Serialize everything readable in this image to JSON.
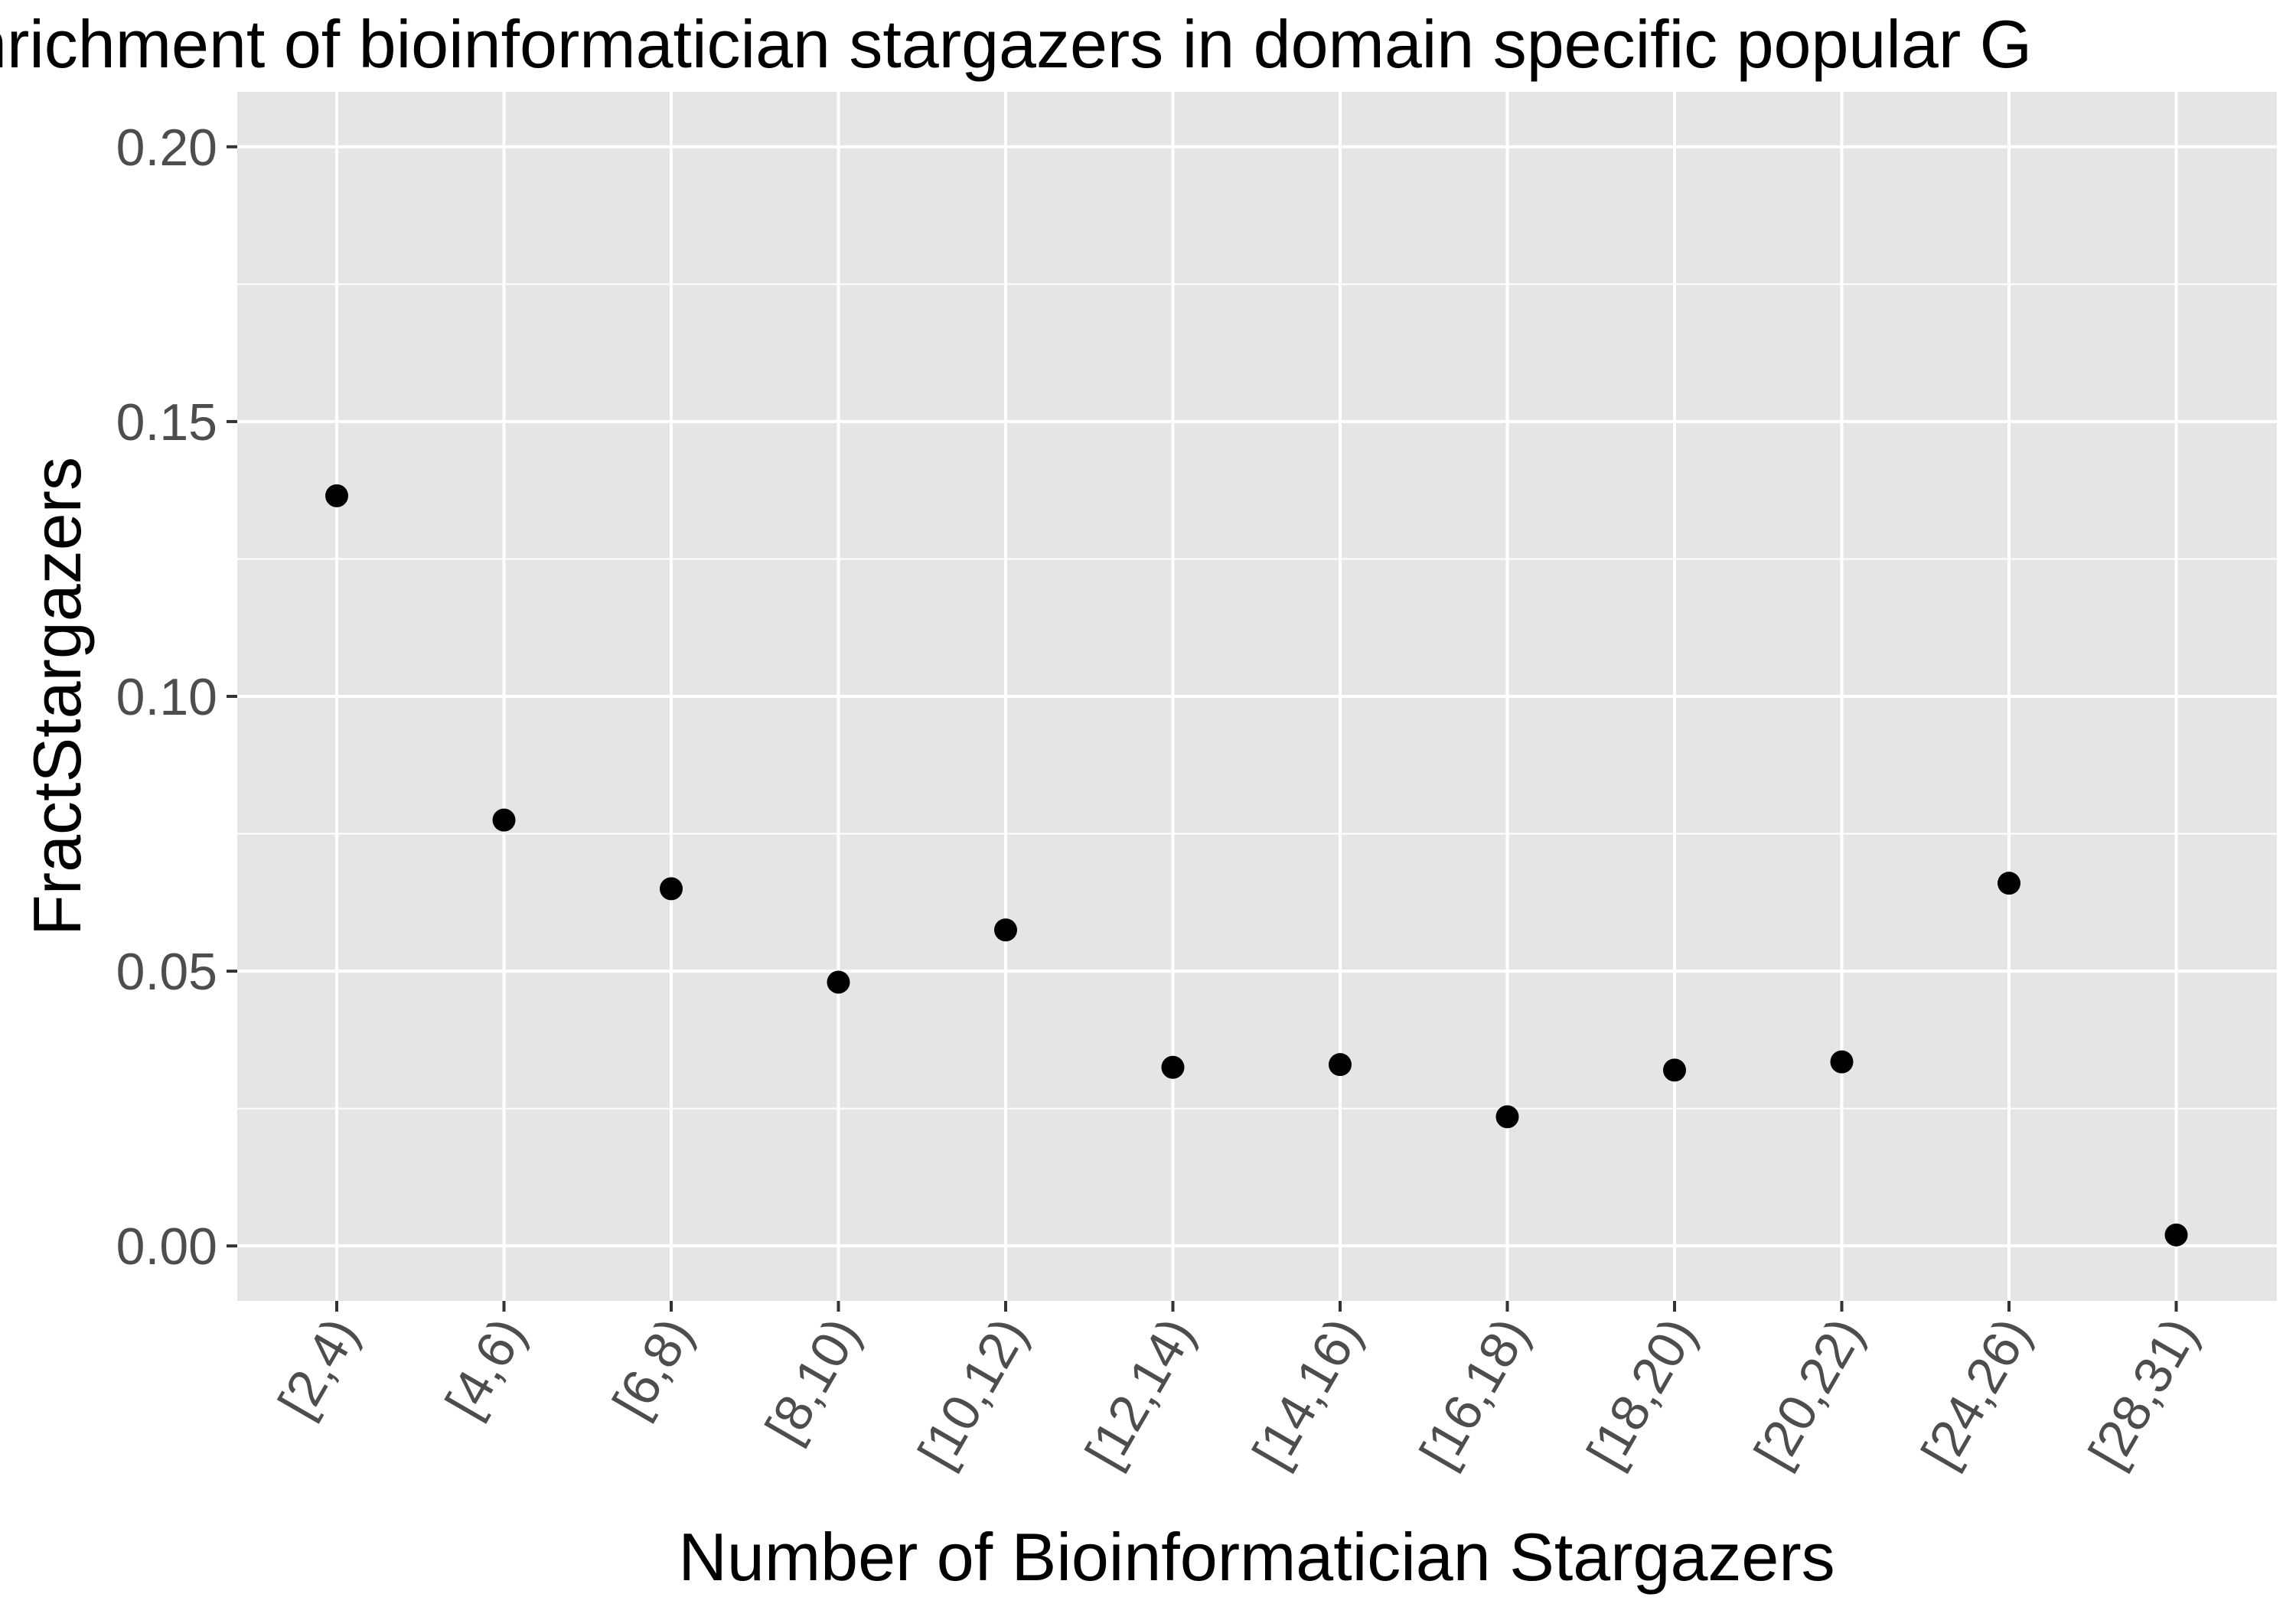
{
  "chart_data": {
    "type": "scatter",
    "title": "nrichment of bioinformatician stargazers in domain specific popular G",
    "xlabel": "Number of Bioinformatician Stargazers",
    "ylabel": "FractStargazers",
    "categories": [
      "[2,4)",
      "[4,6)",
      "[6,8)",
      "[8,10)",
      "[10,12)",
      "[12,14)",
      "[14,16)",
      "[16,18)",
      "[18,20)",
      "[20,22)",
      "[24,26)",
      "[28,31)"
    ],
    "values": [
      0.1365,
      0.0775,
      0.065,
      0.048,
      0.0575,
      0.0325,
      0.033,
      0.0235,
      0.032,
      0.0335,
      0.066,
      0.002
    ],
    "ylim": [
      -0.01,
      0.21
    ],
    "yticks": [
      0.0,
      0.05,
      0.1,
      0.15,
      0.2
    ],
    "ytick_labels": [
      "0.00",
      "0.05",
      "0.10",
      "0.15",
      "0.20"
    ],
    "grid": true,
    "legend": "none",
    "colors": {
      "panel_background": "#e5e5e5",
      "grid_line": "#ffffff",
      "point": "#000000",
      "tick_label": "#4d4d4d",
      "tick_mark": "#333333"
    }
  }
}
